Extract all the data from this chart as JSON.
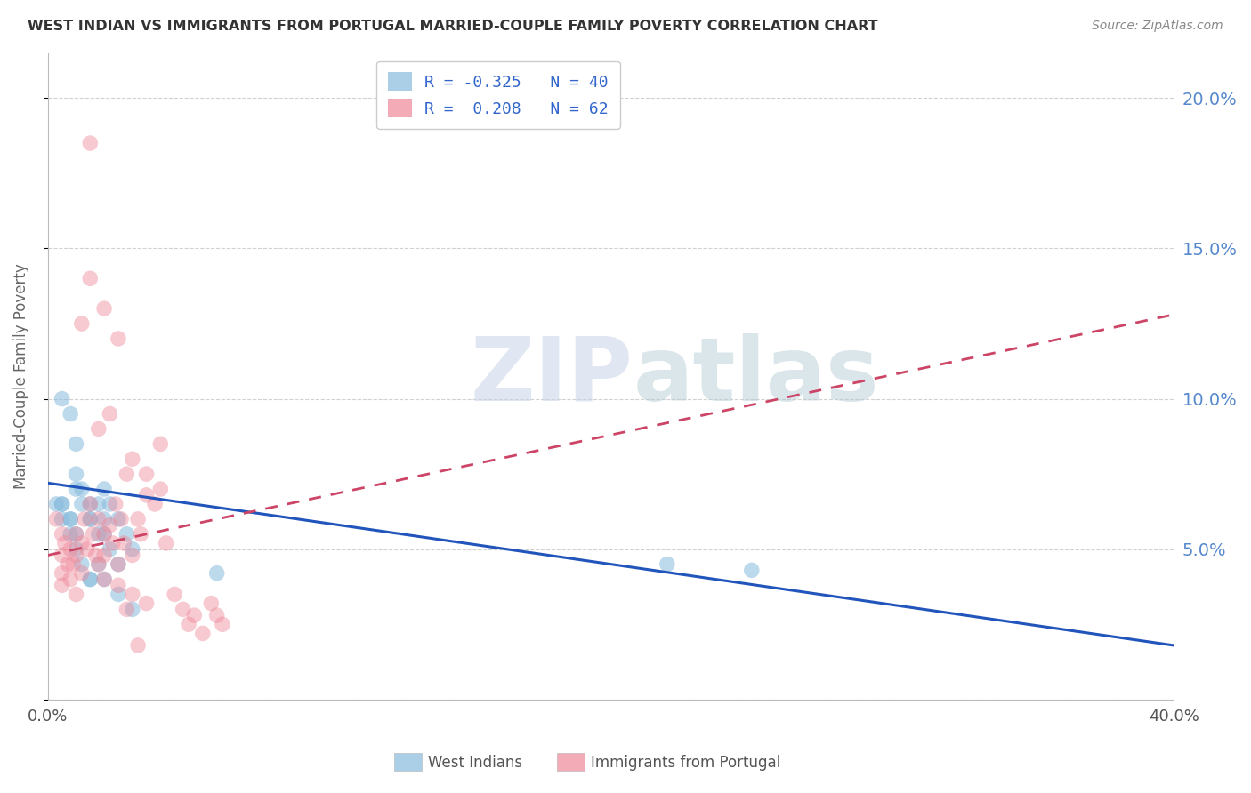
{
  "title": "WEST INDIAN VS IMMIGRANTS FROM PORTUGAL MARRIED-COUPLE FAMILY POVERTY CORRELATION CHART",
  "source": "Source: ZipAtlas.com",
  "ylabel": "Married-Couple Family Poverty",
  "ytick_labels": [
    "",
    "5.0%",
    "10.0%",
    "15.0%",
    "20.0%"
  ],
  "ytick_values": [
    0.0,
    0.05,
    0.1,
    0.15,
    0.2
  ],
  "xlim": [
    0.0,
    0.4
  ],
  "ylim": [
    0.0,
    0.215
  ],
  "series1_label": "West Indians",
  "series2_label": "Immigrants from Portugal",
  "series1_color": "#88bbdd",
  "series2_color": "#ee8899",
  "series1_line_color": "#2255bb",
  "series2_line_color": "#cc4466",
  "watermark_zip": "ZIP",
  "watermark_atlas": "atlas",
  "background_color": "#ffffff",
  "grid_color": "#cccccc",
  "title_color": "#333333",
  "right_axis_tick_color": "#5588cc",
  "legend_r1": "R = -0.325",
  "legend_n1": "N = 40",
  "legend_r2": "R =  0.208",
  "legend_n2": "N = 62",
  "wi_line_x0": 0.0,
  "wi_line_y0": 0.072,
  "wi_line_x1": 0.4,
  "wi_line_y1": 0.018,
  "pt_line_x0": 0.0,
  "pt_line_y0": 0.048,
  "pt_line_x1": 0.4,
  "pt_line_y1": 0.128,
  "west_indian_x": [
    0.005,
    0.008,
    0.01,
    0.01,
    0.012,
    0.015,
    0.015,
    0.018,
    0.02,
    0.022,
    0.005,
    0.008,
    0.01,
    0.012,
    0.015,
    0.018,
    0.02,
    0.025,
    0.028,
    0.03,
    0.003,
    0.005,
    0.008,
    0.01,
    0.012,
    0.015,
    0.018,
    0.02,
    0.022,
    0.025,
    0.005,
    0.008,
    0.01,
    0.015,
    0.02,
    0.025,
    0.03,
    0.22,
    0.25,
    0.06
  ],
  "west_indian_y": [
    0.1,
    0.095,
    0.085,
    0.075,
    0.07,
    0.065,
    0.06,
    0.065,
    0.07,
    0.065,
    0.065,
    0.06,
    0.07,
    0.065,
    0.06,
    0.055,
    0.06,
    0.06,
    0.055,
    0.05,
    0.065,
    0.06,
    0.055,
    0.05,
    0.045,
    0.04,
    0.045,
    0.055,
    0.05,
    0.045,
    0.065,
    0.06,
    0.055,
    0.04,
    0.04,
    0.035,
    0.03,
    0.045,
    0.043,
    0.042
  ],
  "portugal_x": [
    0.003,
    0.005,
    0.005,
    0.005,
    0.005,
    0.006,
    0.007,
    0.008,
    0.008,
    0.009,
    0.01,
    0.01,
    0.01,
    0.012,
    0.012,
    0.013,
    0.014,
    0.015,
    0.015,
    0.016,
    0.017,
    0.018,
    0.018,
    0.02,
    0.02,
    0.02,
    0.022,
    0.023,
    0.024,
    0.025,
    0.025,
    0.026,
    0.027,
    0.028,
    0.03,
    0.03,
    0.032,
    0.033,
    0.035,
    0.038,
    0.04,
    0.042,
    0.045,
    0.048,
    0.05,
    0.052,
    0.055,
    0.058,
    0.06,
    0.062,
    0.015,
    0.02,
    0.025,
    0.012,
    0.03,
    0.035,
    0.04,
    0.018,
    0.022,
    0.028,
    0.035,
    0.032
  ],
  "portugal_y": [
    0.06,
    0.055,
    0.048,
    0.042,
    0.038,
    0.052,
    0.045,
    0.05,
    0.04,
    0.045,
    0.055,
    0.048,
    0.035,
    0.052,
    0.042,
    0.06,
    0.05,
    0.185,
    0.065,
    0.055,
    0.048,
    0.045,
    0.06,
    0.055,
    0.04,
    0.048,
    0.058,
    0.052,
    0.065,
    0.045,
    0.038,
    0.06,
    0.052,
    0.03,
    0.048,
    0.035,
    0.06,
    0.055,
    0.068,
    0.065,
    0.07,
    0.052,
    0.035,
    0.03,
    0.025,
    0.028,
    0.022,
    0.032,
    0.028,
    0.025,
    0.14,
    0.13,
    0.12,
    0.125,
    0.08,
    0.075,
    0.085,
    0.09,
    0.095,
    0.075,
    0.032,
    0.018
  ]
}
